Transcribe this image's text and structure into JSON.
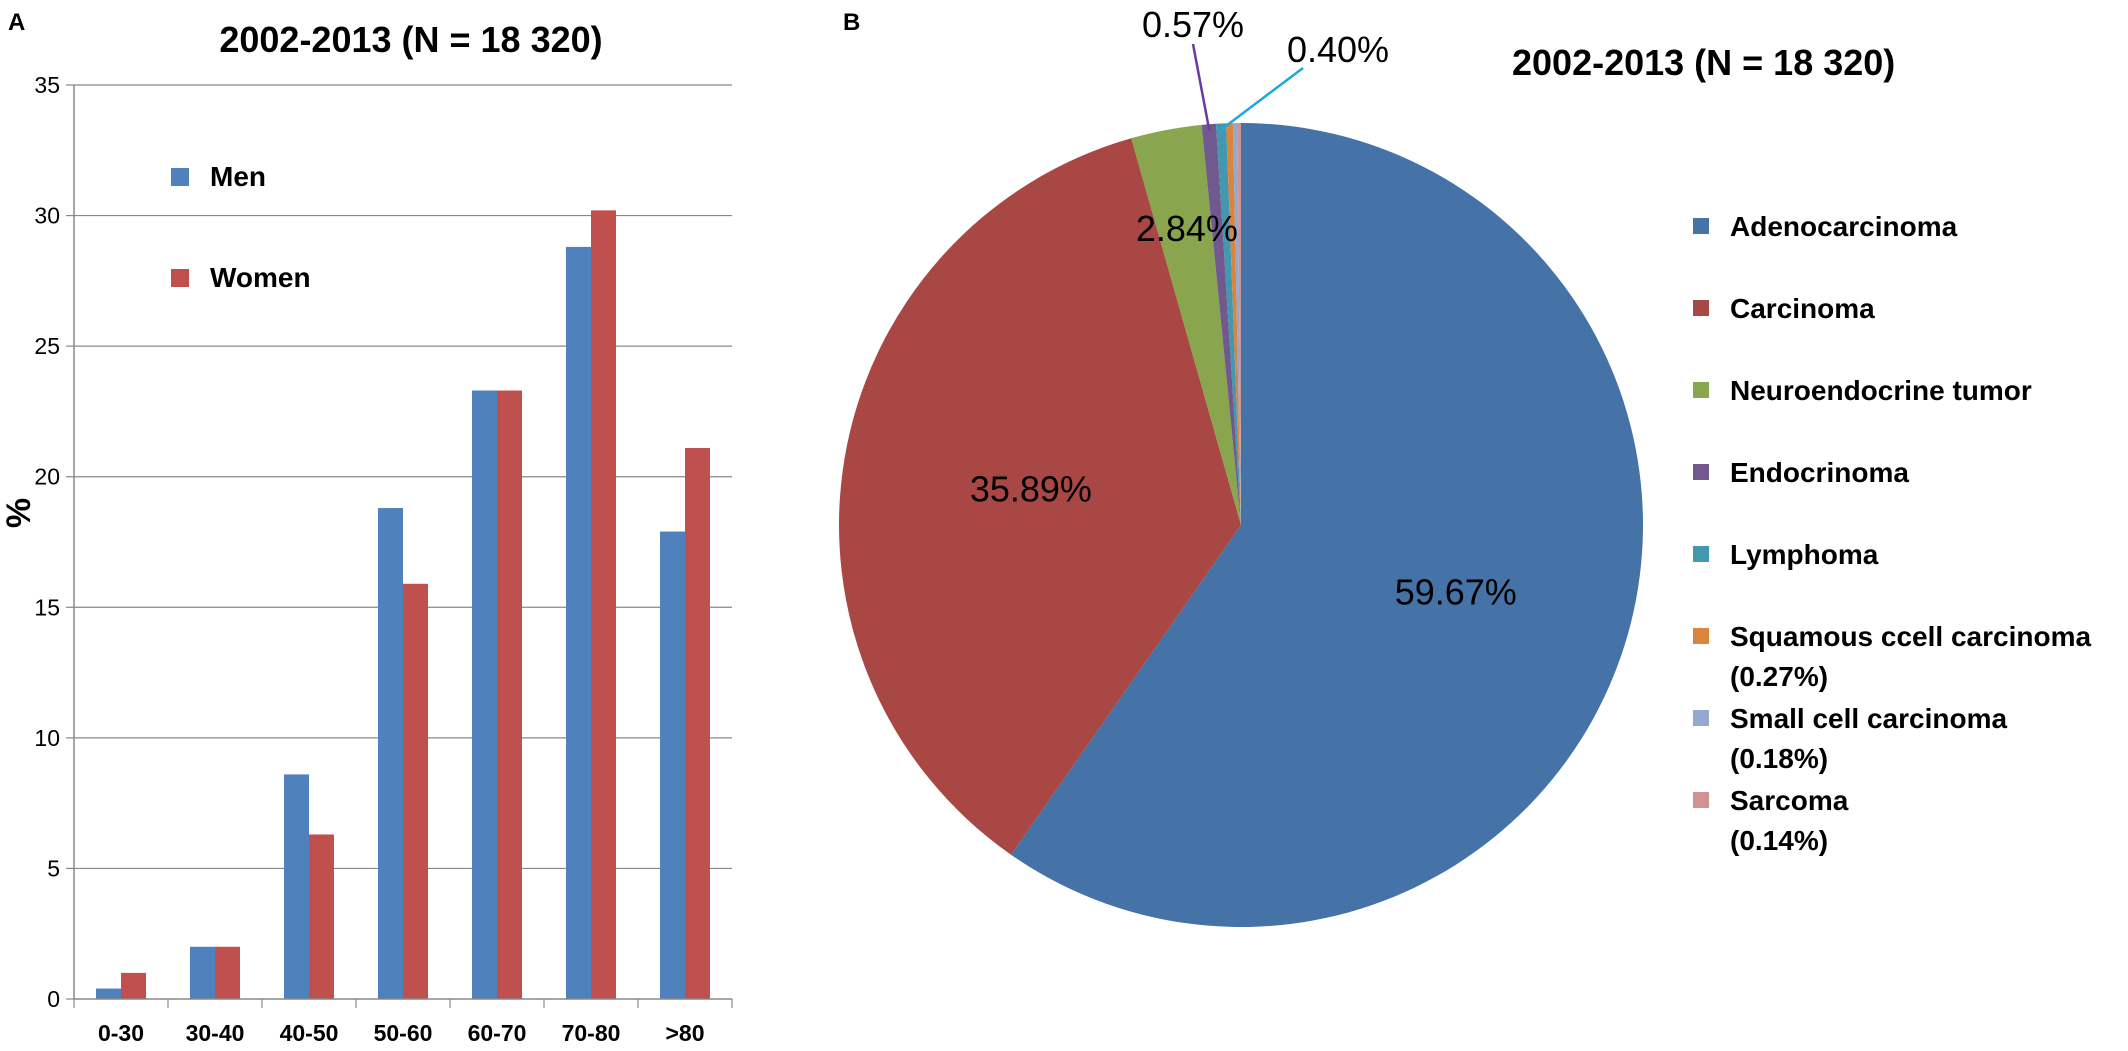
{
  "panels": {
    "a_label": "A",
    "b_label": "B"
  },
  "chart_data": [
    {
      "type": "bar",
      "title": "2002-2013 (N = 18 320)",
      "xlabel": "",
      "ylabel": "%",
      "ylim": [
        0,
        35
      ],
      "yticks": [
        0,
        5,
        10,
        15,
        20,
        25,
        30,
        35
      ],
      "grid": true,
      "legend_position": "top-left",
      "categories": [
        "0-30",
        "30-40",
        "40-50",
        "50-60",
        "60-70",
        "70-80",
        ">80"
      ],
      "series": [
        {
          "name": "Men",
          "color": "#4f81bd",
          "values": [
            0.4,
            2.0,
            8.6,
            18.8,
            23.3,
            28.8,
            17.9
          ]
        },
        {
          "name": "Women",
          "color": "#c0504d",
          "values": [
            1.0,
            2.0,
            6.3,
            15.9,
            23.3,
            30.2,
            21.1
          ]
        }
      ]
    },
    {
      "type": "pie",
      "title": "2002-2013 (N = 18 320)",
      "legend_position": "right",
      "slices": [
        {
          "name": "Adenocarcinoma",
          "value": 59.67,
          "label": "59.67%",
          "color": "#4572a7",
          "legend_note": ""
        },
        {
          "name": "Carcinoma",
          "value": 35.89,
          "label": "35.89%",
          "color": "#a84744",
          "legend_note": ""
        },
        {
          "name": "Neuroendocrine tumor",
          "value": 2.84,
          "label": "2.84%",
          "color": "#89a54e",
          "legend_note": ""
        },
        {
          "name": "Endocrinoma",
          "value": 0.57,
          "label": "0.57%",
          "color": "#71588f",
          "legend_note": ""
        },
        {
          "name": "Lymphoma",
          "value": 0.4,
          "label": "0.40%",
          "color": "#4198af",
          "legend_note": ""
        },
        {
          "name": "Squamous ccell carcinoma",
          "value": 0.27,
          "label": "",
          "color": "#db843d",
          "legend_note": "(0.27%)"
        },
        {
          "name": "Small cell carcinoma",
          "value": 0.18,
          "label": "",
          "color": "#93a9cf",
          "legend_note": "(0.18%)"
        },
        {
          "name": "Sarcoma",
          "value": 0.14,
          "label": "",
          "color": "#d19392",
          "legend_note": "(0.14%)"
        }
      ]
    }
  ]
}
